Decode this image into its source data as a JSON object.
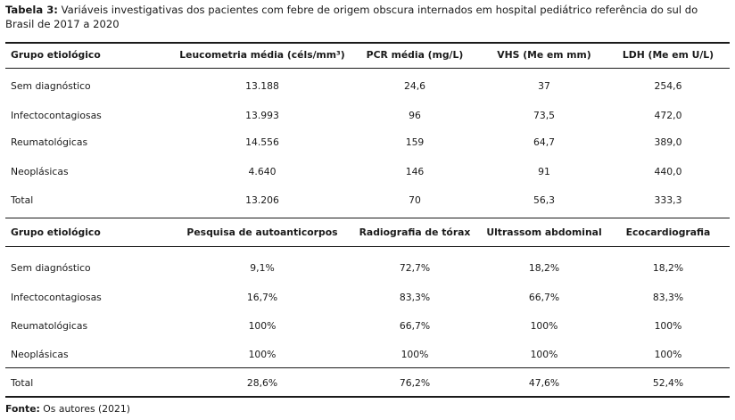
{
  "title": {
    "label": "Tabela 3:",
    "text": "Variáveis investigativas dos pacientes com febre de origem obscura internados em hospital pediátrico referência do sul do Brasil de 2017 a 2020"
  },
  "table1": {
    "headers": [
      "Grupo etiológico",
      "Leucometria média (céls/mm³)",
      "PCR média (mg/L)",
      "VHS (Me em mm)",
      "LDH (Me em U/L)"
    ],
    "rows": [
      [
        "Sem diagnóstico",
        "13.188",
        "24,6",
        "37",
        "254,6"
      ],
      [
        "Infectocontagiosas",
        "13.993",
        "96",
        "73,5",
        "472,0"
      ],
      [
        "Reumatológicas",
        "14.556",
        "159",
        "64,7",
        "389,0"
      ],
      [
        "Neoplásicas",
        "4.640",
        "146",
        "91",
        "440,0"
      ],
      [
        "Total",
        "13.206",
        "70",
        "56,3",
        "333,3"
      ]
    ]
  },
  "table2": {
    "headers": [
      "Grupo etiológico",
      "Pesquisa de autoanticorpos",
      "Radiografia de tórax",
      "Ultrassom abdominal",
      "Ecocardiografia"
    ],
    "rows": [
      [
        "Sem diagnóstico",
        "9,1%",
        "72,7%",
        "18,2%",
        "18,2%"
      ],
      [
        "Infectocontagiosas",
        "16,7%",
        "83,3%",
        "66,7%",
        "83,3%"
      ],
      [
        "Reumatológicas",
        "100%",
        "66,7%",
        "100%",
        "100%"
      ],
      [
        "Neoplásicas",
        "100%",
        "100%",
        "100%",
        "100%"
      ],
      [
        "Total",
        "28,6%",
        "76,2%",
        "47,6%",
        "52,4%"
      ]
    ]
  },
  "source": {
    "label": "Fonte:",
    "text": "Os autores (2021)"
  }
}
